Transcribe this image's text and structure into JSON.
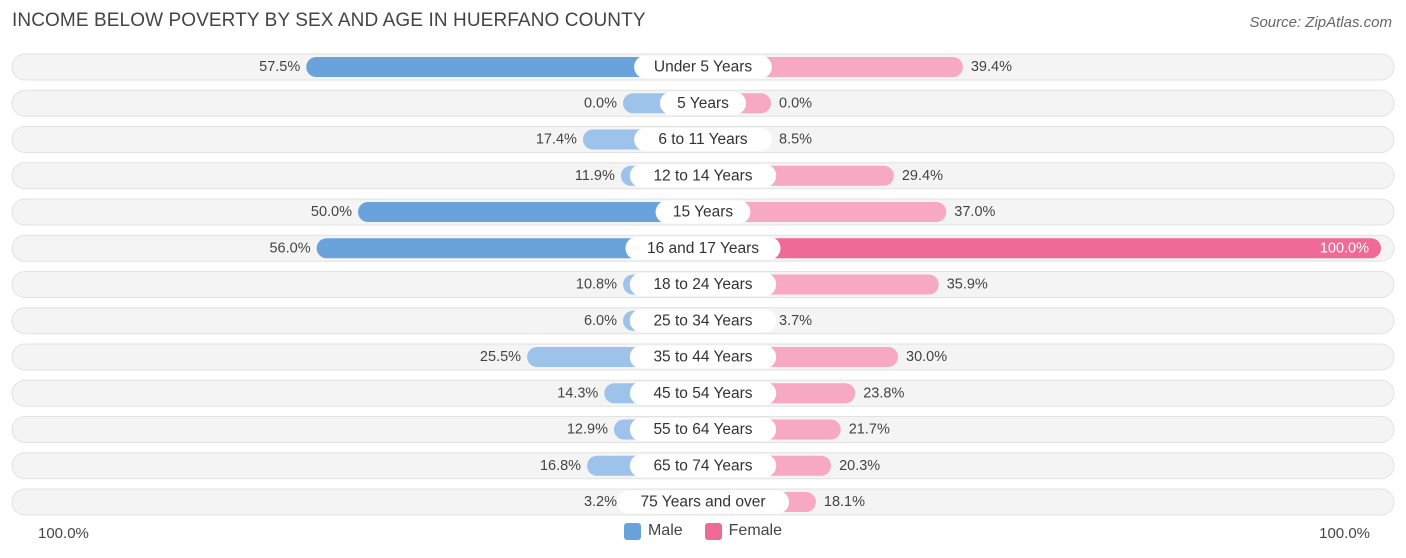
{
  "header": {
    "title": "INCOME BELOW POVERTY BY SEX AND AGE IN HUERFANO COUNTY",
    "source": "Source: ZipAtlas.com"
  },
  "axis": {
    "left_label": "100.0%",
    "right_label": "100.0%"
  },
  "legend": {
    "male": "Male",
    "female": "Female"
  },
  "colors": {
    "male_light": "#9dc3ea",
    "male_strong": "#6aa3dc",
    "female_light": "#f7a8c2",
    "female_strong": "#f06a97",
    "track": "#efefef"
  },
  "chart_data": {
    "type": "bar",
    "title": "INCOME BELOW POVERTY BY SEX AND AGE IN HUERFANO COUNTY",
    "categories": [
      "Under 5 Years",
      "5 Years",
      "6 to 11 Years",
      "12 to 14 Years",
      "15 Years",
      "16 and 17 Years",
      "18 to 24 Years",
      "25 to 34 Years",
      "35 to 44 Years",
      "45 to 54 Years",
      "55 to 64 Years",
      "65 to 74 Years",
      "75 Years and over"
    ],
    "series": [
      {
        "name": "Male",
        "values": [
          57.5,
          0.0,
          17.4,
          11.9,
          50.0,
          56.0,
          10.8,
          6.0,
          25.5,
          14.3,
          12.9,
          16.8,
          3.2
        ],
        "labels": [
          "57.5%",
          "0.0%",
          "17.4%",
          "11.9%",
          "50.0%",
          "56.0%",
          "10.8%",
          "6.0%",
          "25.5%",
          "14.3%",
          "12.9%",
          "16.8%",
          "3.2%"
        ]
      },
      {
        "name": "Female",
        "values": [
          39.4,
          0.0,
          8.5,
          29.4,
          37.0,
          100.0,
          35.9,
          3.7,
          30.0,
          23.8,
          21.7,
          20.3,
          18.1
        ],
        "labels": [
          "39.4%",
          "0.0%",
          "8.5%",
          "29.4%",
          "37.0%",
          "100.0%",
          "35.9%",
          "3.7%",
          "30.0%",
          "23.8%",
          "21.7%",
          "20.3%",
          "18.1%"
        ]
      }
    ],
    "xlim": [
      -100,
      100
    ],
    "legend_position": "bottom-center"
  }
}
